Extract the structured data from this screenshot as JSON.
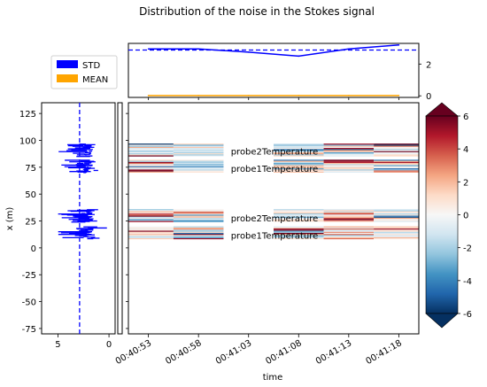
{
  "chart_data": {
    "type": "heatmap",
    "title": "Distribution of the noise in the Stokes signal",
    "xlabel": "time",
    "ylabel": "x (m)",
    "time_ticks": [
      "00:40:53",
      "00:40:58",
      "00:41:03",
      "00:41:08",
      "00:41:13",
      "00:41:18"
    ],
    "time_range_s": [
      -2,
      27
    ],
    "ylim": [
      -80,
      135
    ],
    "y_ticks": [
      125,
      100,
      75,
      50,
      25,
      0,
      -25,
      -50,
      -75
    ],
    "colorbar": {
      "cmap": "RdBu_r",
      "range": [
        -6,
        6
      ],
      "ticks": [
        6,
        4,
        2,
        0,
        -2,
        -4,
        -6
      ]
    },
    "legend": {
      "position": "top-left",
      "entries": [
        {
          "label": "STD",
          "color": "#0000ff"
        },
        {
          "label": "MEAN",
          "color": "#ffa500"
        }
      ]
    },
    "top_panel": {
      "ylim": [
        -0.1,
        3.3
      ],
      "y_ticks": [
        2,
        0
      ],
      "series": [
        {
          "name": "STD",
          "color": "#0000ff",
          "t": [
            0,
            5,
            10,
            15,
            20,
            25
          ],
          "values": [
            2.95,
            2.95,
            2.75,
            2.5,
            2.95,
            3.2
          ]
        },
        {
          "name": "MEAN",
          "color": "#ffa500",
          "t": [
            0,
            5,
            10,
            15,
            20,
            25
          ],
          "values": [
            0.02,
            0.02,
            0.02,
            0.02,
            0.02,
            0.02
          ]
        }
      ],
      "std_reference": 2.88
    },
    "left_panel": {
      "xlim": [
        6.6,
        -0.6
      ],
      "x_ticks": [
        5,
        0
      ],
      "std_reference": 2.88,
      "sections": [
        {
          "name": "probe2Temperature",
          "x_range": [
            85,
            97
          ]
        },
        {
          "name": "probe1Temperature",
          "x_range": [
            70,
            82
          ]
        },
        {
          "name": "probe2Temperature",
          "x_range": [
            24,
            36
          ]
        },
        {
          "name": "probe1Temperature",
          "x_range": [
            8,
            20
          ]
        }
      ]
    },
    "annotations": [
      {
        "text": "probe2Temperature",
        "x_m": 90
      },
      {
        "text": "probe1Temperature",
        "x_m": 74
      },
      {
        "text": "probe2Temperature",
        "x_m": 28
      },
      {
        "text": "probe1Temperature",
        "x_m": 12
      }
    ]
  }
}
